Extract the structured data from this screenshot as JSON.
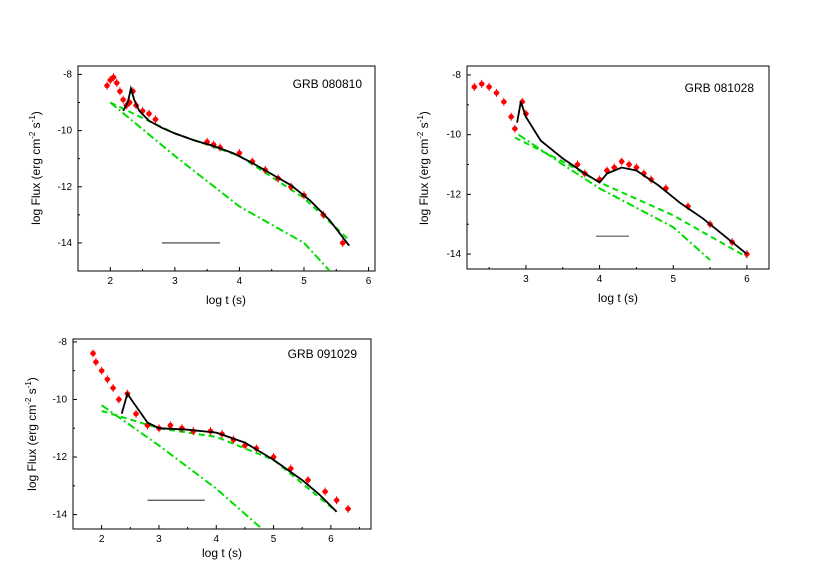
{
  "chart_data": [
    {
      "type": "scatter",
      "title": "GRB 080810",
      "xlabel": "log t (s)",
      "ylabel": "log Flux (erg cm-2 s-1)",
      "xlim": [
        1.5,
        6.1
      ],
      "ylim": [
        -15,
        -7.7
      ],
      "xticks": [
        2,
        3,
        4,
        5,
        6
      ],
      "yticks": [
        -8,
        -10,
        -12,
        -14
      ],
      "grid": false,
      "data_points": [
        {
          "x": 1.95,
          "y": -8.4
        },
        {
          "x": 2.0,
          "y": -8.2
        },
        {
          "x": 2.05,
          "y": -8.1
        },
        {
          "x": 2.1,
          "y": -8.3
        },
        {
          "x": 2.15,
          "y": -8.6
        },
        {
          "x": 2.2,
          "y": -8.9
        },
        {
          "x": 2.25,
          "y": -9.1
        },
        {
          "x": 2.3,
          "y": -9.0
        },
        {
          "x": 2.35,
          "y": -8.6
        },
        {
          "x": 2.4,
          "y": -9.1
        },
        {
          "x": 2.5,
          "y": -9.3
        },
        {
          "x": 2.6,
          "y": -9.4
        },
        {
          "x": 2.7,
          "y": -9.6
        },
        {
          "x": 3.5,
          "y": -10.4
        },
        {
          "x": 3.6,
          "y": -10.5
        },
        {
          "x": 3.7,
          "y": -10.6
        },
        {
          "x": 4.0,
          "y": -10.8
        },
        {
          "x": 4.2,
          "y": -11.1
        },
        {
          "x": 4.4,
          "y": -11.4
        },
        {
          "x": 4.6,
          "y": -11.7
        },
        {
          "x": 4.8,
          "y": -12.0
        },
        {
          "x": 5.0,
          "y": -12.3
        },
        {
          "x": 5.3,
          "y": -13.0
        },
        {
          "x": 5.6,
          "y": -14.0
        }
      ],
      "model_curve": [
        [
          2.2,
          -9.3
        ],
        [
          2.27,
          -9.0
        ],
        [
          2.32,
          -8.5
        ],
        [
          2.37,
          -8.9
        ],
        [
          2.45,
          -9.3
        ],
        [
          2.6,
          -9.65
        ],
        [
          2.8,
          -9.9
        ],
        [
          3.0,
          -10.1
        ],
        [
          3.3,
          -10.35
        ],
        [
          3.6,
          -10.55
        ],
        [
          3.9,
          -10.8
        ],
        [
          4.2,
          -11.15
        ],
        [
          4.5,
          -11.55
        ],
        [
          4.8,
          -11.95
        ],
        [
          5.1,
          -12.5
        ],
        [
          5.4,
          -13.2
        ],
        [
          5.7,
          -14.1
        ]
      ],
      "dashed_line": [
        [
          2.0,
          -9.0
        ],
        [
          3.0,
          -10.1
        ],
        [
          4.0,
          -10.9
        ],
        [
          5.0,
          -12.4
        ],
        [
          5.7,
          -13.9
        ]
      ],
      "dashdot_line": [
        [
          2.0,
          -9.0
        ],
        [
          3.0,
          -10.9
        ],
        [
          4.0,
          -12.7
        ],
        [
          5.0,
          -14.0
        ],
        [
          5.4,
          -15.0
        ]
      ],
      "horizontal_segment": {
        "x": [
          2.8,
          3.7
        ],
        "y": -14.0
      }
    },
    {
      "type": "scatter",
      "title": "GRB 081028",
      "xlabel": "log t (s)",
      "ylabel": "log Flux (erg cm-2 s-1)",
      "xlim": [
        2.2,
        6.3
      ],
      "ylim": [
        -14.5,
        -7.7
      ],
      "xticks": [
        3,
        4,
        5,
        6
      ],
      "yticks": [
        -8,
        -10,
        -12,
        -14
      ],
      "grid": false,
      "data_points": [
        {
          "x": 2.3,
          "y": -8.4
        },
        {
          "x": 2.4,
          "y": -8.3
        },
        {
          "x": 2.5,
          "y": -8.4
        },
        {
          "x": 2.6,
          "y": -8.6
        },
        {
          "x": 2.7,
          "y": -8.9
        },
        {
          "x": 2.8,
          "y": -9.4
        },
        {
          "x": 2.85,
          "y": -9.8
        },
        {
          "x": 2.95,
          "y": -8.9
        },
        {
          "x": 3.0,
          "y": -9.3
        },
        {
          "x": 3.7,
          "y": -11.0
        },
        {
          "x": 3.8,
          "y": -11.3
        },
        {
          "x": 4.0,
          "y": -11.5
        },
        {
          "x": 4.1,
          "y": -11.2
        },
        {
          "x": 4.2,
          "y": -11.1
        },
        {
          "x": 4.3,
          "y": -10.9
        },
        {
          "x": 4.4,
          "y": -11.0
        },
        {
          "x": 4.5,
          "y": -11.1
        },
        {
          "x": 4.6,
          "y": -11.3
        },
        {
          "x": 4.7,
          "y": -11.5
        },
        {
          "x": 4.9,
          "y": -11.8
        },
        {
          "x": 5.2,
          "y": -12.4
        },
        {
          "x": 5.5,
          "y": -13.0
        },
        {
          "x": 5.8,
          "y": -13.6
        },
        {
          "x": 6.0,
          "y": -14.0
        }
      ],
      "model_curve": [
        [
          2.88,
          -9.6
        ],
        [
          2.93,
          -8.9
        ],
        [
          3.0,
          -9.4
        ],
        [
          3.2,
          -10.2
        ],
        [
          3.5,
          -10.8
        ],
        [
          3.8,
          -11.3
        ],
        [
          4.0,
          -11.6
        ],
        [
          4.1,
          -11.3
        ],
        [
          4.3,
          -11.1
        ],
        [
          4.5,
          -11.2
        ],
        [
          4.8,
          -11.7
        ],
        [
          5.1,
          -12.3
        ],
        [
          5.4,
          -12.8
        ],
        [
          5.7,
          -13.4
        ],
        [
          6.0,
          -14.0
        ]
      ],
      "dashed_line": [
        [
          2.85,
          -10.1
        ],
        [
          3.5,
          -10.9
        ],
        [
          4.0,
          -11.6
        ],
        [
          5.0,
          -12.7
        ],
        [
          6.0,
          -14.1
        ]
      ],
      "dashdot_line": [
        [
          2.9,
          -10.0
        ],
        [
          3.5,
          -11.0
        ],
        [
          4.0,
          -11.8
        ],
        [
          5.0,
          -13.1
        ],
        [
          5.5,
          -14.2
        ]
      ],
      "horizontal_segment": {
        "x": [
          3.95,
          4.4
        ],
        "y": -13.4
      }
    },
    {
      "type": "scatter",
      "title": "GRB 091029",
      "xlabel": "log t (s)",
      "ylabel": "log Flux (erg cm-2 s-1)",
      "xlim": [
        1.5,
        6.7
      ],
      "ylim": [
        -14.5,
        -7.9
      ],
      "xticks": [
        2,
        3,
        4,
        5,
        6
      ],
      "yticks": [
        -8,
        -10,
        -12,
        -14
      ],
      "grid": false,
      "data_points": [
        {
          "x": 1.85,
          "y": -8.4
        },
        {
          "x": 1.9,
          "y": -8.7
        },
        {
          "x": 2.0,
          "y": -9.0
        },
        {
          "x": 2.1,
          "y": -9.3
        },
        {
          "x": 2.2,
          "y": -9.6
        },
        {
          "x": 2.3,
          "y": -10.0
        },
        {
          "x": 2.45,
          "y": -9.8
        },
        {
          "x": 2.6,
          "y": -10.5
        },
        {
          "x": 2.8,
          "y": -10.9
        },
        {
          "x": 3.0,
          "y": -11.0
        },
        {
          "x": 3.2,
          "y": -10.9
        },
        {
          "x": 3.4,
          "y": -11.0
        },
        {
          "x": 3.6,
          "y": -11.1
        },
        {
          "x": 3.9,
          "y": -11.1
        },
        {
          "x": 4.1,
          "y": -11.2
        },
        {
          "x": 4.3,
          "y": -11.4
        },
        {
          "x": 4.5,
          "y": -11.6
        },
        {
          "x": 4.7,
          "y": -11.7
        },
        {
          "x": 5.0,
          "y": -12.0
        },
        {
          "x": 5.3,
          "y": -12.4
        },
        {
          "x": 5.6,
          "y": -12.8
        },
        {
          "x": 5.9,
          "y": -13.2
        },
        {
          "x": 6.1,
          "y": -13.5
        },
        {
          "x": 6.3,
          "y": -13.8
        }
      ],
      "model_curve": [
        [
          2.35,
          -10.5
        ],
        [
          2.45,
          -9.8
        ],
        [
          2.55,
          -10.1
        ],
        [
          2.8,
          -10.8
        ],
        [
          3.0,
          -11.0
        ],
        [
          3.5,
          -11.05
        ],
        [
          4.0,
          -11.15
        ],
        [
          4.5,
          -11.5
        ],
        [
          5.0,
          -12.1
        ],
        [
          5.5,
          -12.8
        ],
        [
          5.8,
          -13.3
        ],
        [
          6.1,
          -13.9
        ]
      ],
      "dashed_line": [
        [
          2.0,
          -10.4
        ],
        [
          3.0,
          -11.0
        ],
        [
          4.0,
          -11.3
        ],
        [
          5.0,
          -12.1
        ],
        [
          6.1,
          -13.9
        ]
      ],
      "dashdot_line": [
        [
          2.0,
          -10.2
        ],
        [
          3.0,
          -11.6
        ],
        [
          4.0,
          -13.1
        ],
        [
          4.8,
          -14.5
        ]
      ],
      "horizontal_segment": {
        "x": [
          2.8,
          3.8
        ],
        "y": -13.5
      }
    }
  ],
  "colors": {
    "data": "#ff0000",
    "model": "#000000",
    "component": "#00dd00",
    "segment": "#000000"
  }
}
